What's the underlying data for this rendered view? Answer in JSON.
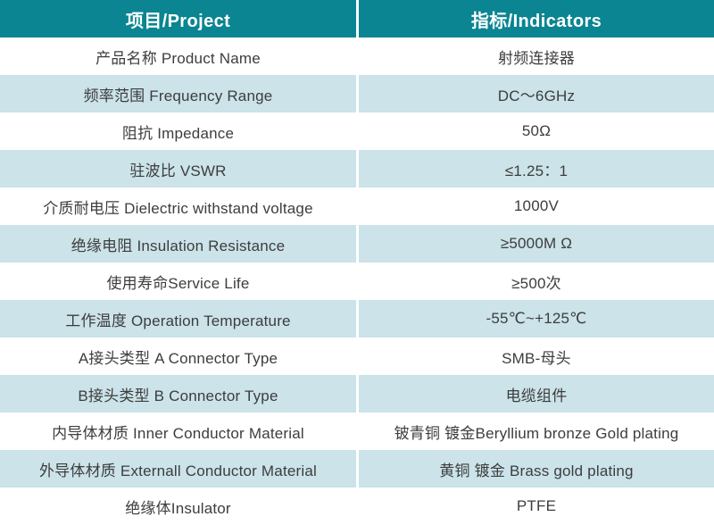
{
  "colors": {
    "header_bg": "#0a8591",
    "header_text": "#ffffff",
    "row_bg": "#ffffff",
    "alt_row_bg": "#cbe3e9",
    "body_text": "#3d3d3d",
    "divider": "#ffffff"
  },
  "table": {
    "columns": [
      {
        "key": "project",
        "label": "项目/Project"
      },
      {
        "key": "indicator",
        "label": "指标/Indicators"
      }
    ],
    "rows": [
      {
        "project": "产品名称 Product Name",
        "indicator": "射频连接器"
      },
      {
        "project": "频率范围 Frequency Range",
        "indicator": "DC～6GHz"
      },
      {
        "project": "阻抗 Impedance",
        "indicator": "50Ω"
      },
      {
        "project": "驻波比 VSWR",
        "indicator": "≤1.25：1"
      },
      {
        "project": "介质耐电压 Dielectric withstand voltage",
        "indicator": "1000V"
      },
      {
        "project": "绝缘电阻 Insulation Resistance",
        "indicator": "≥5000M Ω"
      },
      {
        "project": "使用寿命Service Life",
        "indicator": "≥500次"
      },
      {
        "project": "工作温度 Operation Temperature",
        "indicator": "-55℃~+125℃"
      },
      {
        "project": "A接头类型 A Connector Type",
        "indicator": "SMB-母头"
      },
      {
        "project": "B接头类型 B Connector Type",
        "indicator": "电缆组件"
      },
      {
        "project": "内导体材质 Inner Conductor Material",
        "indicator": "铍青铜 镀金Beryllium bronze Gold plating"
      },
      {
        "project": "外导体材质 Externall Conductor Material",
        "indicator": "黄铜 镀金 Brass gold plating"
      },
      {
        "project": "绝缘体Insulator",
        "indicator": "PTFE"
      }
    ]
  }
}
